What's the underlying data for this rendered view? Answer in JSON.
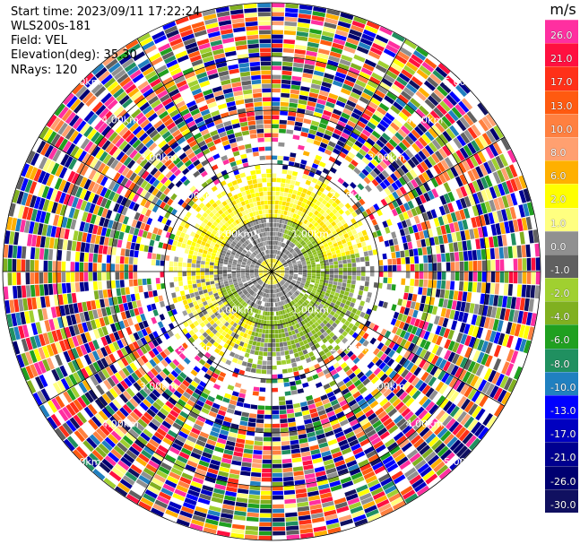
{
  "header": {
    "start_time": "Start time: 2023/09/11 17:22:24",
    "instrument": "WLS200s-181",
    "field": "Field: VEL",
    "elevation": "Elevation(deg): 35.30",
    "nrays": "NRays: 120"
  },
  "colorbar": {
    "unit": "m/s",
    "labels": [
      "26.0",
      "21.0",
      "17.0",
      "13.0",
      "10.0",
      "8.0",
      "6.0",
      "2.0",
      "1.0",
      "0.0",
      "-1.0",
      "-2.0",
      "-4.0",
      "-6.0",
      "-8.0",
      "-10.0",
      "-13.0",
      "-17.0",
      "-21.0",
      "-26.0",
      "-30.0"
    ],
    "colors": [
      "#ff2fa0",
      "#ff1040",
      "#ff3018",
      "#ff5a10",
      "#ff8040",
      "#ffa070",
      "#ffb000",
      "#ffff00",
      "#ffff80",
      "#909090",
      "#606060",
      "#a0d030",
      "#80b020",
      "#20a020",
      "#209060",
      "#2080c0",
      "#0000ff",
      "#0000c0",
      "#000090",
      "#000070",
      "#101060"
    ]
  },
  "chart_data": {
    "type": "ppi",
    "field": "VEL",
    "nrays": 120,
    "range_rings": [
      {
        "label": "1.00km"
      },
      {
        "label": "2.00km"
      },
      {
        "label": "3.00km"
      },
      {
        "label": "4.00km"
      },
      {
        "label": "5.00km"
      }
    ]
  }
}
